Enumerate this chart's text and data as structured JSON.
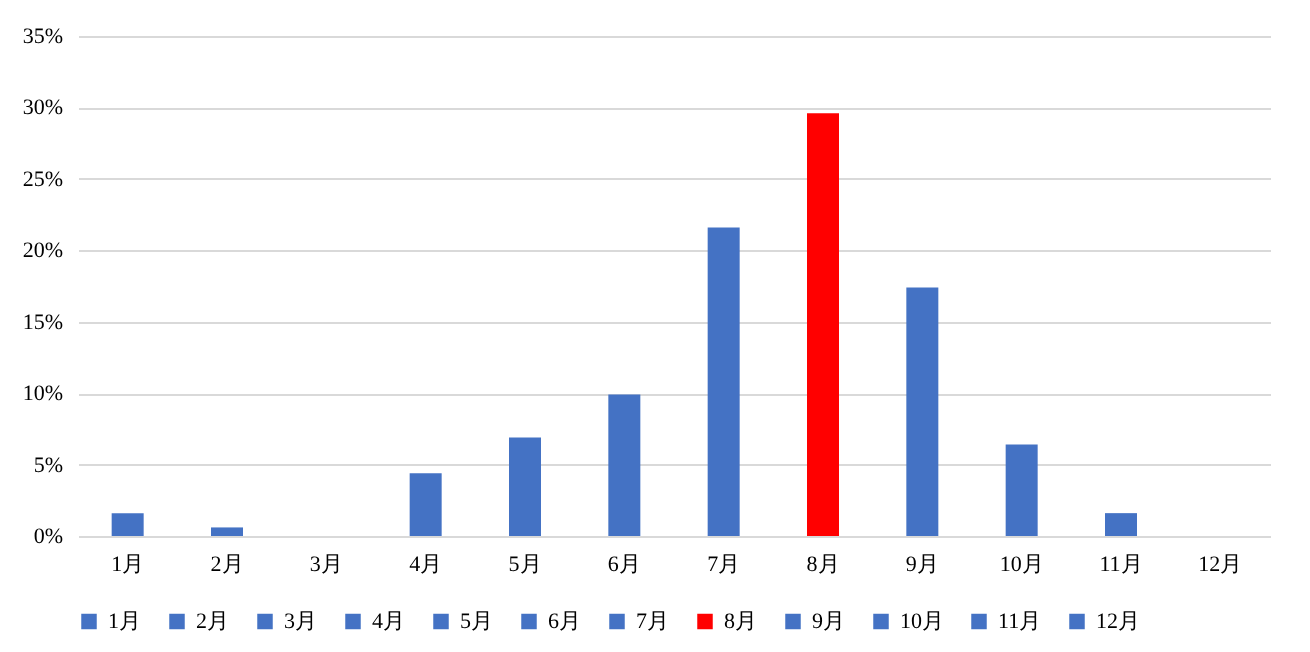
{
  "chart_data": {
    "type": "bar",
    "stacked": true,
    "categories": [
      "1月",
      "2月",
      "3月",
      "4月",
      "5月",
      "6月",
      "7月",
      "8月",
      "9月",
      "10月",
      "11月",
      "12月"
    ],
    "series": [
      {
        "name": "1月",
        "color": "#4472c4",
        "values": [
          1.6,
          null,
          null,
          null,
          null,
          null,
          null,
          null,
          null,
          null,
          null,
          null
        ]
      },
      {
        "name": "2月",
        "color": "#4472c4",
        "values": [
          null,
          0.6,
          null,
          null,
          null,
          null,
          null,
          null,
          null,
          null,
          null,
          null
        ]
      },
      {
        "name": "3月",
        "color": "#4472c4",
        "values": [
          null,
          null,
          0,
          null,
          null,
          null,
          null,
          null,
          null,
          null,
          null,
          null
        ]
      },
      {
        "name": "4月",
        "color": "#4472c4",
        "values": [
          null,
          null,
          null,
          4.4,
          null,
          null,
          null,
          null,
          null,
          null,
          null,
          null
        ]
      },
      {
        "name": "5月",
        "color": "#4472c4",
        "values": [
          null,
          null,
          null,
          null,
          6.9,
          null,
          null,
          null,
          null,
          null,
          null,
          null
        ]
      },
      {
        "name": "6月",
        "color": "#4472c4",
        "values": [
          null,
          null,
          null,
          null,
          null,
          9.9,
          null,
          null,
          null,
          null,
          null,
          null
        ]
      },
      {
        "name": "7月",
        "color": "#4472c4",
        "values": [
          null,
          null,
          null,
          null,
          null,
          null,
          21.6,
          null,
          null,
          null,
          null,
          null
        ]
      },
      {
        "name": "8月",
        "color": "#ff0000",
        "values": [
          null,
          null,
          null,
          null,
          null,
          null,
          null,
          29.6,
          null,
          null,
          null,
          null
        ]
      },
      {
        "name": "9月",
        "color": "#4472c4",
        "values": [
          null,
          null,
          null,
          null,
          null,
          null,
          null,
          null,
          17.4,
          null,
          null,
          null
        ]
      },
      {
        "name": "10月",
        "color": "#4472c4",
        "values": [
          null,
          null,
          null,
          null,
          null,
          null,
          null,
          null,
          null,
          6.4,
          null,
          null
        ]
      },
      {
        "name": "11月",
        "color": "#4472c4",
        "values": [
          null,
          null,
          null,
          null,
          null,
          null,
          null,
          null,
          null,
          null,
          1.6,
          null
        ]
      },
      {
        "name": "12月",
        "color": "#4472c4",
        "values": [
          null,
          null,
          null,
          null,
          null,
          null,
          null,
          null,
          null,
          null,
          null,
          0
        ]
      }
    ],
    "ylim": [
      0,
      35
    ],
    "yticks": [
      {
        "value": 0,
        "label": "0%"
      },
      {
        "value": 5,
        "label": "5%"
      },
      {
        "value": 10,
        "label": "10%"
      },
      {
        "value": 15,
        "label": "15%"
      },
      {
        "value": 20,
        "label": "20%"
      },
      {
        "value": 25,
        "label": "25%"
      },
      {
        "value": 30,
        "label": "30%"
      },
      {
        "value": 35,
        "label": "35%"
      }
    ],
    "grid": "y",
    "legend": "bottom"
  }
}
